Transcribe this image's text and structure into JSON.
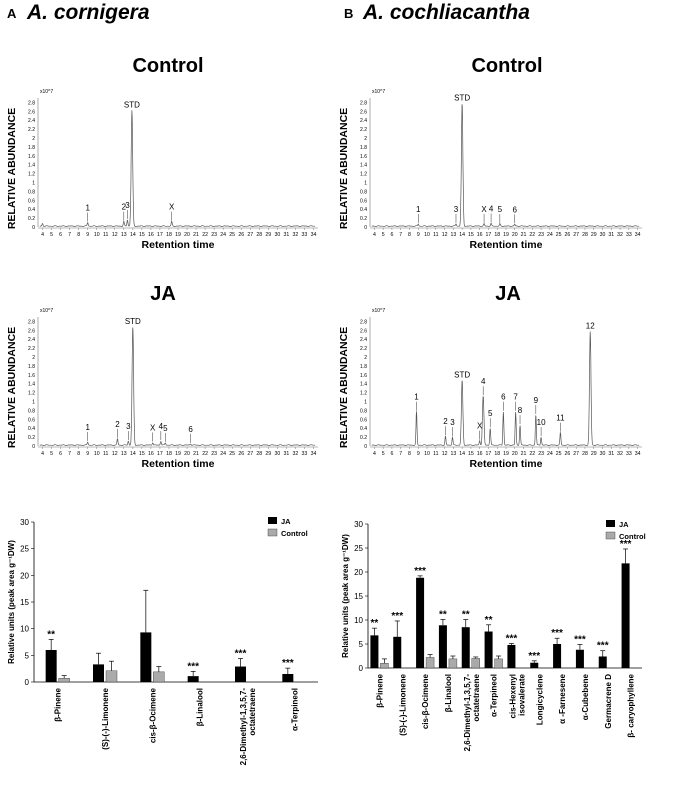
{
  "panels": [
    {
      "letter": "A",
      "species": "A. cornigera"
    },
    {
      "letter": "B",
      "species": "A. cochliacantha"
    }
  ],
  "chart_data": [
    {
      "id": "A-control",
      "type": "line",
      "title": "Control",
      "xlabel": "Retention time",
      "ylabel": "RELATIVE ABUNDANCE",
      "scale": "x10^7",
      "x_ticks": [
        4,
        5,
        6,
        7,
        8,
        9,
        10,
        11,
        12,
        13,
        14,
        15,
        16,
        17,
        18,
        19,
        20,
        21,
        22,
        23,
        24,
        25,
        26,
        27,
        28,
        29,
        30,
        31,
        32,
        33,
        34
      ],
      "y_ticks": [
        0,
        0.2,
        0.4,
        0.6,
        0.8,
        1,
        1.2,
        1.4,
        1.6,
        1.8,
        2,
        2.2,
        2.4,
        2.6,
        2.8
      ],
      "xlim": [
        3.5,
        34.5
      ],
      "ylim": [
        0,
        2.9
      ],
      "peaks": [
        {
          "x": 4.0,
          "y": 0.06,
          "label": ""
        },
        {
          "x": 9.0,
          "y": 0.08,
          "label": "1"
        },
        {
          "x": 13.0,
          "y": 0.1,
          "label": "2"
        },
        {
          "x": 13.4,
          "y": 0.14,
          "label": "3"
        },
        {
          "x": 13.9,
          "y": 2.6,
          "label": "STD"
        },
        {
          "x": 18.3,
          "y": 0.1,
          "label": "X"
        }
      ]
    },
    {
      "id": "A-ja",
      "type": "line",
      "title": "JA",
      "xlabel": "Retention time",
      "ylabel": "RELATIVE ABUNDANCE",
      "scale": "x10^7",
      "x_ticks": [
        4,
        5,
        6,
        7,
        8,
        9,
        10,
        11,
        12,
        13,
        14,
        15,
        16,
        17,
        18,
        19,
        20,
        21,
        22,
        23,
        24,
        25,
        26,
        27,
        28,
        29,
        30,
        31,
        32,
        33,
        34
      ],
      "y_ticks": [
        0,
        0.2,
        0.4,
        0.6,
        0.8,
        1,
        1.2,
        1.4,
        1.6,
        1.8,
        2,
        2.2,
        2.4,
        2.6,
        2.8
      ],
      "xlim": [
        3.5,
        34.5
      ],
      "ylim": [
        0,
        2.9
      ],
      "peaks": [
        {
          "x": 9.0,
          "y": 0.07,
          "label": "1"
        },
        {
          "x": 12.3,
          "y": 0.14,
          "label": "2"
        },
        {
          "x": 13.5,
          "y": 0.09,
          "label": "3"
        },
        {
          "x": 14.0,
          "y": 2.65,
          "label": "STD"
        },
        {
          "x": 16.2,
          "y": 0.06,
          "label": "X"
        },
        {
          "x": 17.1,
          "y": 0.09,
          "label": "4"
        },
        {
          "x": 17.6,
          "y": 0.05,
          "label": "5"
        },
        {
          "x": 20.4,
          "y": 0.03,
          "label": "6"
        }
      ]
    },
    {
      "id": "B-control",
      "type": "line",
      "title": "Control",
      "xlabel": "Retention time",
      "ylabel": "RELATIVE ABUNDANCE",
      "scale": "x10^7",
      "x_ticks": [
        4,
        5,
        6,
        7,
        8,
        9,
        10,
        11,
        12,
        13,
        14,
        15,
        16,
        17,
        18,
        19,
        20,
        21,
        22,
        23,
        24,
        25,
        26,
        27,
        28,
        29,
        30,
        31,
        32,
        33,
        34
      ],
      "y_ticks": [
        0,
        0.2,
        0.4,
        0.6,
        0.8,
        1,
        1.2,
        1.4,
        1.6,
        1.8,
        2,
        2.2,
        2.4,
        2.6,
        2.8
      ],
      "xlim": [
        3.5,
        34.5
      ],
      "ylim": [
        0,
        2.9
      ],
      "peaks": [
        {
          "x": 9.0,
          "y": 0.05,
          "label": "1"
        },
        {
          "x": 13.3,
          "y": 0.05,
          "label": "3"
        },
        {
          "x": 14.0,
          "y": 2.75,
          "label": "STD"
        },
        {
          "x": 16.5,
          "y": 0.05,
          "label": "X"
        },
        {
          "x": 17.3,
          "y": 0.06,
          "label": "4"
        },
        {
          "x": 18.3,
          "y": 0.05,
          "label": "5"
        },
        {
          "x": 20.0,
          "y": 0.04,
          "label": "6"
        }
      ]
    },
    {
      "id": "B-ja",
      "type": "line",
      "title": "JA",
      "xlabel": "Retention time",
      "ylabel": "RELATIVE ABUNDANCE",
      "scale": "x10^7",
      "x_ticks": [
        4,
        5,
        6,
        7,
        8,
        9,
        10,
        11,
        12,
        13,
        14,
        15,
        16,
        17,
        18,
        19,
        20,
        21,
        22,
        23,
        24,
        25,
        26,
        27,
        28,
        29,
        30,
        31,
        32,
        33,
        34
      ],
      "y_ticks": [
        0,
        0.2,
        0.4,
        0.6,
        0.8,
        1,
        1.2,
        1.4,
        1.6,
        1.8,
        2,
        2.2,
        2.4,
        2.6,
        2.8
      ],
      "xlim": [
        3.5,
        34.5
      ],
      "ylim": [
        0,
        2.9
      ],
      "peaks": [
        {
          "x": 8.8,
          "y": 0.75,
          "label": "1"
        },
        {
          "x": 12.1,
          "y": 0.2,
          "label": "2"
        },
        {
          "x": 12.9,
          "y": 0.18,
          "label": "3"
        },
        {
          "x": 14.0,
          "y": 1.45,
          "label": "STD"
        },
        {
          "x": 16.0,
          "y": 0.1,
          "label": "X"
        },
        {
          "x": 16.4,
          "y": 1.1,
          "label": "4"
        },
        {
          "x": 17.2,
          "y": 0.38,
          "label": "5"
        },
        {
          "x": 18.7,
          "y": 0.75,
          "label": "6"
        },
        {
          "x": 20.1,
          "y": 0.75,
          "label": "7"
        },
        {
          "x": 20.6,
          "y": 0.45,
          "label": "8"
        },
        {
          "x": 22.4,
          "y": 0.68,
          "label": "9"
        },
        {
          "x": 23.0,
          "y": 0.18,
          "label": "10"
        },
        {
          "x": 25.2,
          "y": 0.28,
          "label": "11"
        },
        {
          "x": 28.6,
          "y": 2.55,
          "label": "12"
        }
      ]
    },
    {
      "id": "A-bar",
      "type": "bar",
      "title": "",
      "xlabel": "",
      "ylabel": "Relative units (peak area g⁻¹DW)",
      "ylim": [
        0,
        30
      ],
      "y_ticks": [
        0,
        5,
        10,
        15,
        20,
        25,
        30
      ],
      "legend": [
        "JA",
        "Control"
      ],
      "categories": [
        "β-Pinene",
        "(S)-(-)-Limonene",
        "cis-β-Ocimene",
        "β-Linalool",
        "2,6-Dimethyl-1,3,5,7-\noctatetraene",
        "α-Terpineol"
      ],
      "series": [
        {
          "name": "JA",
          "values": [
            6.0,
            3.3,
            9.3,
            1.1,
            2.9,
            1.5
          ],
          "errors": [
            2.0,
            2.1,
            7.9,
            0.9,
            1.5,
            1.1
          ],
          "significance": [
            "**",
            "",
            "",
            "***",
            "***",
            "***"
          ]
        },
        {
          "name": "Control",
          "values": [
            0.7,
            2.1,
            1.9,
            0,
            0,
            0
          ],
          "errors": [
            0.5,
            1.8,
            1.0,
            0,
            0,
            0
          ]
        }
      ]
    },
    {
      "id": "B-bar",
      "type": "bar",
      "title": "",
      "xlabel": "",
      "ylabel": "Relative units (peak area g⁻¹DW)",
      "ylim": [
        0,
        30
      ],
      "y_ticks": [
        0,
        5,
        10,
        15,
        20,
        25,
        30
      ],
      "legend": [
        "JA",
        "Control"
      ],
      "categories": [
        "β-Pinene",
        "(S)-(-)-Limonene",
        "cis-β-Ocimene",
        "β-Linalool",
        "2,6-Dimethyl-1,3,5,7-\noctatetraene",
        "α-Terpineol",
        "cis-Hexenyl\nisovalerate",
        "Longicyclene",
        "α -Farnesene",
        "α-Cubebene",
        "Germacrene D",
        "β- caryophyllene"
      ],
      "series": [
        {
          "name": "JA",
          "values": [
            6.8,
            6.5,
            18.8,
            8.9,
            8.5,
            7.6,
            4.8,
            1.1,
            5.0,
            3.8,
            2.4,
            21.8
          ],
          "errors": [
            1.5,
            3.3,
            0.4,
            1.2,
            1.6,
            1.4,
            0.3,
            0.4,
            1.2,
            1.1,
            1.2,
            3.0
          ],
          "significance": [
            "**",
            "***",
            "***",
            "**",
            "**",
            "**",
            "***",
            "***",
            "***",
            "***",
            "***",
            "***"
          ]
        },
        {
          "name": "Control",
          "values": [
            1.0,
            0,
            2.2,
            1.9,
            2.0,
            1.9,
            0,
            0,
            0,
            0,
            0,
            0
          ],
          "errors": [
            0.9,
            0,
            0.6,
            0.6,
            0.3,
            0.6,
            0,
            0,
            0,
            0,
            0,
            0
          ]
        }
      ]
    }
  ]
}
